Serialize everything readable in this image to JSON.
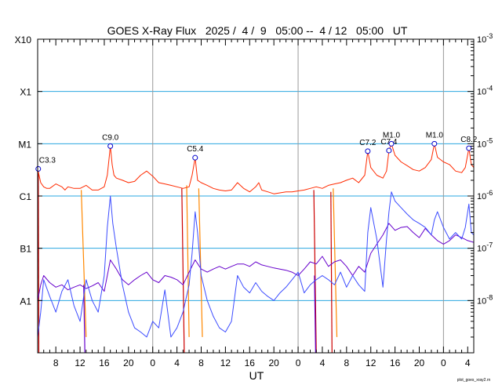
{
  "chart_data": {
    "type": "line",
    "title": "GOES X-Ray Flux   2025 /  4 /  9   05:00 --  4 / 12   05:00   UT",
    "xlabel": "UT",
    "credit": "plot_goes_xray2.rn",
    "xlim_hours": [
      0,
      72
    ],
    "x_tick_labels": [
      "8",
      "12",
      "16",
      "20",
      "0",
      "4",
      "8",
      "12",
      "16",
      "20",
      "0",
      "4",
      "8",
      "12",
      "16",
      "20",
      "0",
      "4"
    ],
    "x_tick_hours": [
      3,
      7,
      11,
      15,
      19,
      23,
      27,
      31,
      35,
      39,
      43,
      47,
      51,
      55,
      59,
      63,
      67,
      71
    ],
    "day_boundaries_hours": [
      19,
      43,
      67
    ],
    "y_scale": "log",
    "ylim": [
      1e-09,
      0.001
    ],
    "left_axis_labels": [
      {
        "label": "X10",
        "value": 0.001
      },
      {
        "label": "X1",
        "value": 0.0001
      },
      {
        "label": "M1",
        "value": 1e-05
      },
      {
        "label": "C1",
        "value": 1e-06
      },
      {
        "label": "B1",
        "value": 1e-07
      },
      {
        "label": "A1",
        "value": 1e-08
      }
    ],
    "right_axis_labels": [
      {
        "mant": "10",
        "exp": "-3",
        "value": 0.001
      },
      {
        "mant": "10",
        "exp": "-4",
        "value": 0.0001
      },
      {
        "mant": "10",
        "exp": "-5",
        "value": 1e-05
      },
      {
        "mant": "10",
        "exp": "-6",
        "value": 1e-06
      },
      {
        "mant": "10",
        "exp": "-7",
        "value": 1e-07
      },
      {
        "mant": "10",
        "exp": "-8",
        "value": 1e-08
      }
    ],
    "flares": [
      {
        "label": "C3.3",
        "x": 0.1,
        "y": 3.3e-06
      },
      {
        "label": "C9.0",
        "x": 12.0,
        "y": 9e-06
      },
      {
        "label": "C5.4",
        "x": 26.0,
        "y": 5.4e-06
      },
      {
        "label": "C7.2",
        "x": 54.5,
        "y": 7.2e-06
      },
      {
        "label": "C7.4",
        "x": 58.0,
        "y": 7.4e-06
      },
      {
        "label": "M1.0",
        "x": 58.4,
        "y": 1e-05
      },
      {
        "label": "M1.0",
        "x": 65.5,
        "y": 1e-05
      },
      {
        "label": "C8.2",
        "x": 71.2,
        "y": 8.2e-06
      }
    ],
    "series": [
      {
        "color": "#ff2a00",
        "x": [
          0,
          0.5,
          1,
          1.5,
          2,
          3,
          4,
          4.5,
          5,
          6,
          7,
          8,
          9,
          10,
          11,
          11.5,
          12,
          12.3,
          12.6,
          13,
          14,
          15,
          16,
          17,
          18,
          19,
          20,
          21,
          22,
          23,
          24,
          25,
          25.5,
          26,
          26.4,
          27,
          28,
          29,
          30,
          31,
          32,
          33,
          34,
          35,
          36,
          36.5,
          37,
          38,
          39,
          40,
          41,
          42,
          43,
          44,
          45,
          46,
          47,
          48,
          49,
          50,
          51,
          52,
          53,
          54,
          54.5,
          55,
          56,
          57,
          57.6,
          58,
          58.4,
          59,
          60,
          61,
          62,
          63,
          64,
          65,
          65.5,
          66,
          67,
          68,
          69,
          70,
          70.6,
          71.2,
          71.6,
          72
        ],
        "y": [
          3.3e-06,
          1.8e-06,
          1.5e-06,
          1.4e-06,
          1.4e-06,
          1.7e-06,
          1.5e-06,
          1.3e-06,
          1.5e-06,
          1.4e-06,
          1.4e-06,
          1.6e-06,
          1.3e-06,
          1.3e-06,
          1.5e-06,
          2.5e-06,
          9e-06,
          4e-06,
          2.5e-06,
          2.2e-06,
          2e-06,
          1.8e-06,
          1.9e-06,
          2.5e-06,
          3e-06,
          2.4e-06,
          1.8e-06,
          1.7e-06,
          1.6e-06,
          1.5e-06,
          1.4e-06,
          1.5e-06,
          2.5e-06,
          5.4e-06,
          2e-06,
          1.8e-06,
          1.6e-06,
          1.4e-06,
          1.3e-06,
          1.25e-06,
          1.3e-06,
          1.8e-06,
          1.4e-06,
          1.2e-06,
          1.5e-06,
          1.8e-06,
          1.3e-06,
          1.2e-06,
          1.1e-06,
          1.15e-06,
          1.2e-06,
          1.2e-06,
          1.25e-06,
          1.3e-06,
          1.4e-06,
          1.5e-06,
          1.4e-06,
          1.6e-06,
          1.7e-06,
          1.8e-06,
          2e-06,
          2.2e-06,
          1.8e-06,
          2.5e-06,
          7.2e-06,
          3.5e-06,
          2.5e-06,
          2.2e-06,
          3e-06,
          7.4e-06,
          1e-05,
          6e-06,
          4.5e-06,
          3.8e-06,
          3.2e-06,
          3e-06,
          3.5e-06,
          5e-06,
          1e-05,
          5.5e-06,
          4.5e-06,
          4e-06,
          3e-06,
          2.8e-06,
          3.5e-06,
          8.2e-06,
          4e-06,
          3.5e-06
        ]
      },
      {
        "color": "#6600cc",
        "x": [
          0,
          0.5,
          1,
          2,
          3,
          4,
          5,
          6,
          7,
          8,
          9,
          10,
          11,
          12,
          13,
          14,
          15,
          16,
          17,
          18,
          19,
          20,
          21,
          22,
          23,
          24,
          25,
          26,
          27,
          28,
          29,
          30,
          31,
          32,
          33,
          34,
          35,
          36,
          37,
          38,
          39,
          40,
          41,
          42,
          43,
          44,
          45,
          46,
          47,
          48,
          49,
          50,
          51,
          52,
          53,
          54,
          55,
          56,
          57,
          58,
          59,
          60,
          61,
          62,
          63,
          64,
          65,
          66,
          67,
          68,
          69,
          70,
          71,
          72
        ],
        "y": [
          1e-08,
          2e-08,
          3e-08,
          2.2e-08,
          1.8e-08,
          2e-08,
          1.6e-08,
          1.8e-08,
          2e-08,
          1.7e-08,
          1.9e-08,
          2.2e-08,
          1.5e-08,
          6e-08,
          4e-08,
          2.5e-08,
          2e-08,
          2.5e-08,
          3e-08,
          3.5e-08,
          2.5e-08,
          2.2e-08,
          3e-08,
          2.8e-08,
          2.5e-08,
          2e-08,
          3.5e-08,
          6e-08,
          4e-08,
          3.5e-08,
          4e-08,
          4.5e-08,
          4e-08,
          4.5e-08,
          5e-08,
          5e-08,
          4.5e-08,
          5.5e-08,
          4.8e-08,
          4.5e-08,
          4.2e-08,
          4e-08,
          3.8e-08,
          3.5e-08,
          3e-08,
          4e-08,
          5.5e-08,
          5e-08,
          7e-08,
          4.5e-08,
          5.5e-08,
          6e-08,
          4.5e-08,
          3e-08,
          4.5e-08,
          3.5e-08,
          8e-08,
          1.2e-07,
          1.8e-07,
          3e-07,
          2.2e-07,
          2.5e-07,
          2.6e-07,
          2e-07,
          1.6e-07,
          2.4e-07,
          1.8e-07,
          1.4e-07,
          1.2e-07,
          1.4e-07,
          1.8e-07,
          1.6e-07,
          1.4e-07,
          1.3e-07
        ]
      },
      {
        "color": "#3c4cff",
        "x": [
          0,
          0.5,
          1,
          2,
          3,
          4,
          5,
          6,
          7,
          8,
          9,
          10,
          11,
          11.5,
          12,
          12.4,
          13,
          14,
          15,
          16,
          17,
          18,
          19,
          20,
          21,
          22,
          23,
          24,
          25,
          25.5,
          26,
          26.4,
          27,
          28,
          29,
          30,
          31,
          32,
          33,
          34,
          35,
          36,
          37,
          38,
          39,
          40,
          41,
          42,
          43,
          44,
          45,
          46,
          47,
          48,
          49,
          50,
          51,
          52,
          53,
          54,
          54.5,
          55,
          56,
          57,
          57.6,
          58,
          58.4,
          59,
          60,
          61,
          62,
          63,
          64,
          65,
          65.5,
          66,
          67,
          68,
          69,
          70,
          70.6,
          71.2,
          71.6,
          72
        ],
        "y": [
          2e-09,
          6e-09,
          2.5e-08,
          1.2e-08,
          6e-09,
          1.5e-08,
          2.5e-08,
          8e-09,
          4e-09,
          2.5e-08,
          1e-08,
          6e-09,
          3e-08,
          2.5e-07,
          1e-06,
          3e-07,
          1e-07,
          2e-08,
          6e-09,
          3e-09,
          2.5e-09,
          2e-09,
          4e-09,
          3e-09,
          1.6e-08,
          2e-09,
          3e-09,
          6e-09,
          2e-08,
          8e-08,
          5e-07,
          2e-07,
          3e-08,
          1e-08,
          5e-09,
          3e-09,
          2.5e-09,
          4e-09,
          3e-08,
          1.8e-08,
          1.4e-08,
          2.2e-08,
          1.5e-08,
          1.2e-08,
          1e-08,
          1.4e-08,
          1.8e-08,
          2.5e-08,
          3.5e-08,
          1.4e-08,
          2e-08,
          2.5e-08,
          3e-08,
          2.5e-08,
          2e-08,
          3.5e-08,
          1.8e-08,
          3e-08,
          2e-08,
          1.5e-08,
          2e-07,
          6e-07,
          1.5e-07,
          1.8e-08,
          1.5e-07,
          5e-07,
          1.2e-06,
          8e-07,
          6e-07,
          4.5e-07,
          3.5e-07,
          3e-07,
          2.5e-07,
          1.8e-07,
          3.5e-07,
          5e-07,
          2.5e-07,
          1.5e-07,
          2e-07,
          1.5e-07,
          2.5e-07,
          7e-07,
          2e-07,
          1.8e-07
        ]
      }
    ],
    "spikes": [
      {
        "color": "#ff8800",
        "x": [
          7.2,
          8.0
        ],
        "y": [
          1.3e-06,
          2e-09
        ]
      },
      {
        "color": "#ff8800",
        "x": [
          24.6,
          25.0
        ],
        "y": [
          1.6e-06,
          2e-09
        ]
      },
      {
        "color": "#ff8800",
        "x": [
          26.6,
          27.2
        ],
        "y": [
          1.4e-06,
          2e-09
        ]
      },
      {
        "color": "#ff8800",
        "x": [
          48.8,
          49.4
        ],
        "y": [
          1.4e-06,
          2e-09
        ]
      },
      {
        "color": "#cc0000",
        "x": [
          0.1,
          0.2
        ],
        "y": [
          3e-06,
          1e-09
        ]
      },
      {
        "color": "#cc0000",
        "x": [
          23.8,
          24.2
        ],
        "y": [
          1.4e-06,
          1e-09
        ]
      },
      {
        "color": "#cc0000",
        "x": [
          45.6,
          46.0
        ],
        "y": [
          1.3e-06,
          1e-09
        ]
      },
      {
        "color": "#cc0000",
        "x": [
          48.4,
          48.6
        ],
        "y": [
          1.2e-06,
          1e-09
        ]
      },
      {
        "color": "#6600cc",
        "x": [
          7.6,
          7.8
        ],
        "y": [
          2e-08,
          1e-09
        ]
      },
      {
        "color": "#6600cc",
        "x": [
          45.7,
          45.9
        ],
        "y": [
          3e-08,
          1e-09
        ]
      }
    ]
  }
}
